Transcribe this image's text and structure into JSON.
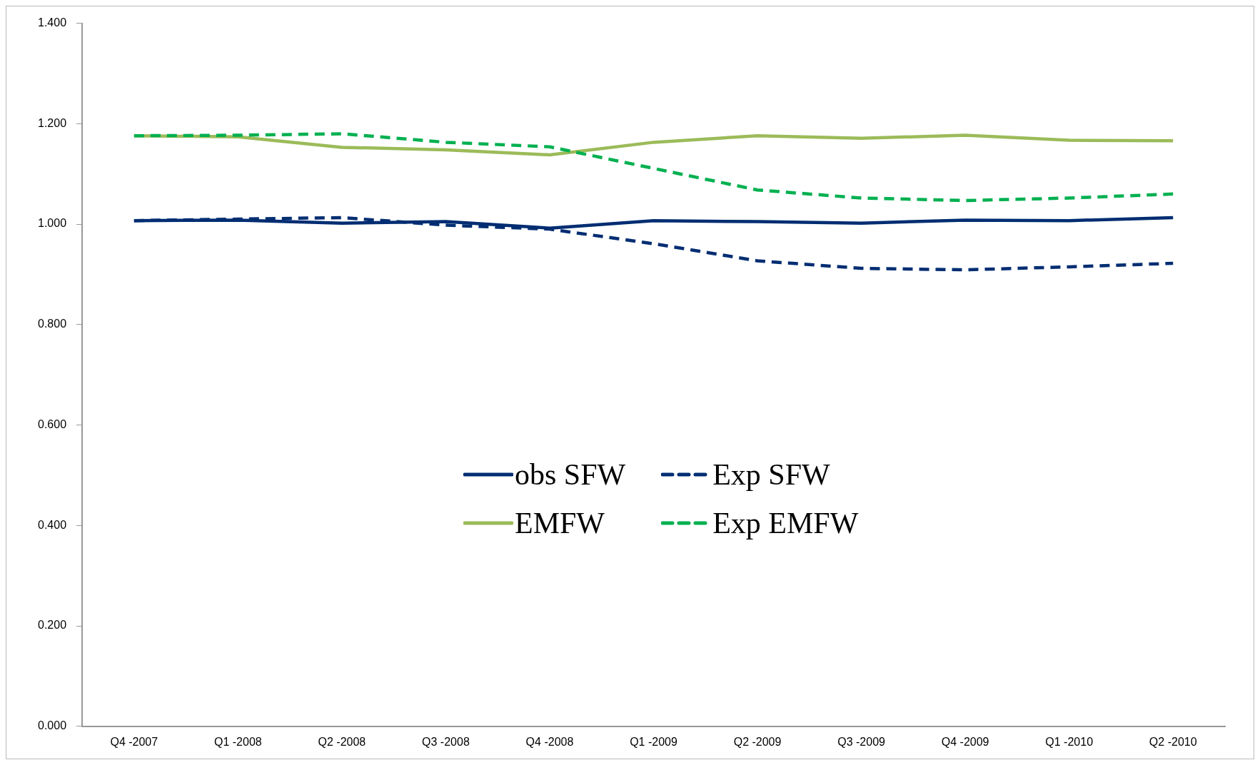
{
  "chart_data": {
    "type": "line",
    "categories": [
      "Q4 -2007",
      "Q1 -2008",
      "Q2 -2008",
      "Q3 -2008",
      "Q4 -2008",
      "Q1 -2009",
      "Q2 -2009",
      "Q3 -2009",
      "Q4 -2009",
      "Q1 -2010",
      "Q2 -2010"
    ],
    "ylim": [
      0,
      1.4
    ],
    "yticks": [
      {
        "value": 0,
        "label": "0.000"
      },
      {
        "value": 0.2,
        "label": "0.200"
      },
      {
        "value": 0.4,
        "label": "0.400"
      },
      {
        "value": 0.6,
        "label": "0.600"
      },
      {
        "value": 0.8,
        "label": "0.800"
      },
      {
        "value": 1.0,
        "label": "1.000"
      },
      {
        "value": 1.2,
        "label": "1.200"
      },
      {
        "value": 1.4,
        "label": "1.400"
      }
    ],
    "grid": false,
    "legend": "center",
    "marker": "none",
    "series": [
      {
        "name": "obs SFW",
        "color": "#002d72",
        "line_style": "solid",
        "values": [
          1.007,
          1.008,
          1.002,
          1.005,
          0.992,
          1.007,
          1.005,
          1.002,
          1.008,
          1.007,
          1.013
        ]
      },
      {
        "name": "Exp SFW",
        "color": "#002d72",
        "line_style": "dashed",
        "values": [
          1.007,
          1.01,
          1.013,
          0.998,
          0.99,
          0.961,
          0.927,
          0.912,
          0.909,
          0.915,
          0.922
        ]
      },
      {
        "name": "EMFW",
        "color": "#9bbb59",
        "line_style": "solid",
        "values": [
          1.176,
          1.174,
          1.153,
          1.148,
          1.138,
          1.163,
          1.176,
          1.171,
          1.177,
          1.167,
          1.166
        ]
      },
      {
        "name": "Exp EMFW",
        "color": "#00b050",
        "line_style": "dashed",
        "values": [
          1.176,
          1.177,
          1.18,
          1.163,
          1.154,
          1.111,
          1.068,
          1.052,
          1.047,
          1.052,
          1.06
        ]
      }
    ]
  }
}
